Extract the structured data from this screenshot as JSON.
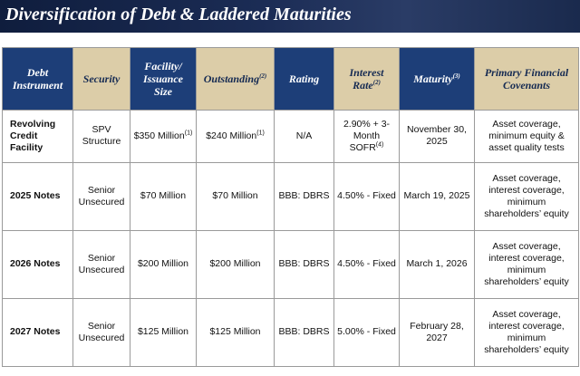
{
  "header": {
    "title": "Diversification of Debt & Laddered Maturities"
  },
  "table": {
    "columns": [
      {
        "text": "Debt Instrument"
      },
      {
        "text": "Security"
      },
      {
        "text": "Facility/ Issuance Size"
      },
      {
        "text": "Outstanding",
        "sup": "(2)"
      },
      {
        "text": "Rating"
      },
      {
        "text": "Interest Rate",
        "sup": "(2)"
      },
      {
        "text": "Maturity",
        "sup": "(3)"
      },
      {
        "text": "Primary Financial Covenants"
      }
    ],
    "rows": [
      [
        {
          "text": "Revolving Credit Facility"
        },
        {
          "text": "SPV Structure"
        },
        {
          "text": "$350 Million",
          "sup": "(1)"
        },
        {
          "text": "$240 Million",
          "sup": "(1)"
        },
        {
          "text": "N/A"
        },
        {
          "text": "2.90% + 3-Month SOFR",
          "sup": "(4)"
        },
        {
          "text": "November 30, 2025"
        },
        {
          "text": "Asset coverage, minimum equity & asset quality tests"
        }
      ],
      [
        {
          "text": "2025 Notes"
        },
        {
          "text": "Senior Unsecured"
        },
        {
          "text": "$70 Million"
        },
        {
          "text": "$70 Million"
        },
        {
          "text": "BBB: DBRS"
        },
        {
          "text": "4.50% - Fixed"
        },
        {
          "text": "March 19, 2025"
        },
        {
          "text": "Asset coverage, interest coverage, minimum shareholders’ equity"
        }
      ],
      [
        {
          "text": "2026 Notes"
        },
        {
          "text": "Senior Unsecured"
        },
        {
          "text": "$200 Million"
        },
        {
          "text": "$200 Million"
        },
        {
          "text": "BBB: DBRS"
        },
        {
          "text": "4.50% - Fixed"
        },
        {
          "text": "March 1, 2026"
        },
        {
          "text": "Asset coverage, interest coverage, minimum shareholders’ equity"
        }
      ],
      [
        {
          "text": "2027 Notes"
        },
        {
          "text": "Senior Unsecured"
        },
        {
          "text": "$125 Million"
        },
        {
          "text": "$125 Million"
        },
        {
          "text": "BBB: DBRS"
        },
        {
          "text": "5.00% - Fixed"
        },
        {
          "text": "February 28, 2027"
        },
        {
          "text": "Asset coverage, interest coverage, minimum shareholders’ equity"
        }
      ]
    ]
  }
}
